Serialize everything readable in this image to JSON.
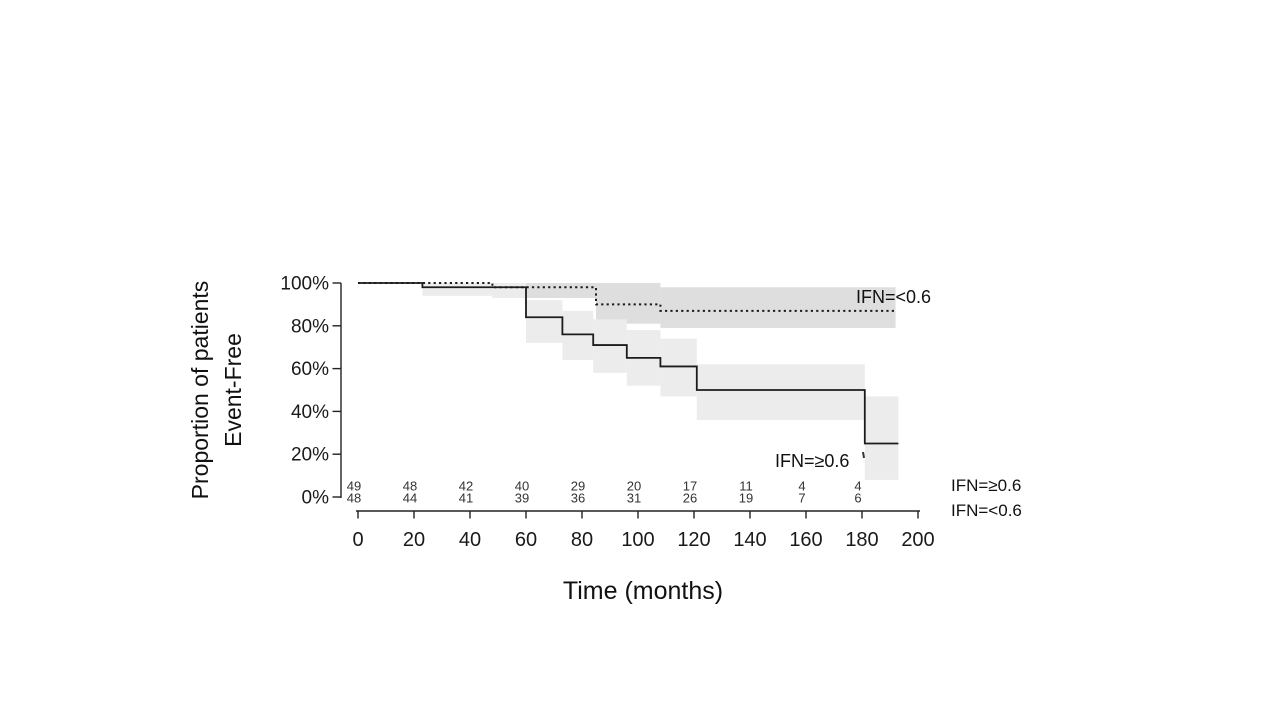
{
  "chart_data": {
    "type": "line",
    "subtype": "kaplan-meier-step",
    "title": "",
    "xlabel": "Time (months)",
    "ylabel_line1": "Proportion of patients",
    "ylabel_line2": "Event-Free",
    "xlim": [
      0,
      200
    ],
    "ylim": [
      0,
      100
    ],
    "grid": false,
    "x_ticks": [
      0,
      20,
      40,
      60,
      80,
      100,
      120,
      140,
      160,
      180,
      200
    ],
    "y_ticks": [
      {
        "value": 0,
        "label": "0%"
      },
      {
        "value": 20,
        "label": "20%"
      },
      {
        "value": 40,
        "label": "40%"
      },
      {
        "value": 60,
        "label": "60%"
      },
      {
        "value": 80,
        "label": "80%"
      },
      {
        "value": 100,
        "label": "100%"
      }
    ],
    "series": [
      {
        "key": "ifn-lt-0.6",
        "name": "IFN=<0.6",
        "label": "IFN=<0.6",
        "style": "dotted",
        "line_color": "#1c1c1c",
        "band_color": "#dedede",
        "points": [
          [
            0,
            100
          ],
          [
            48,
            98
          ],
          [
            85,
            90
          ],
          [
            108,
            87
          ]
        ],
        "end_time": 192,
        "ci_segments": [
          [
            48,
            85,
            100,
            93
          ],
          [
            85,
            108,
            100,
            81
          ],
          [
            108,
            192,
            98,
            79
          ]
        ]
      },
      {
        "key": "ifn-ge-0.6",
        "name": "IFN=≥0.6",
        "label": "IFN=≥0.6",
        "style": "solid",
        "line_color": "#1c1c1c",
        "band_color": "#ececec",
        "points": [
          [
            0,
            100
          ],
          [
            23,
            98
          ],
          [
            60,
            84
          ],
          [
            73,
            76
          ],
          [
            84,
            71
          ],
          [
            96,
            65
          ],
          [
            108,
            61
          ],
          [
            121,
            50
          ],
          [
            181,
            25
          ]
        ],
        "end_time": 193,
        "ci_segments": [
          [
            23,
            48,
            100,
            94
          ],
          [
            48,
            60,
            100,
            93
          ],
          [
            60,
            73,
            92,
            72
          ],
          [
            73,
            84,
            87,
            64
          ],
          [
            84,
            96,
            83,
            58
          ],
          [
            96,
            108,
            78,
            52
          ],
          [
            108,
            121,
            74,
            47
          ],
          [
            121,
            181,
            62,
            36
          ],
          [
            181,
            193,
            47,
            8
          ]
        ]
      }
    ],
    "risk_table": {
      "times": [
        0,
        20,
        40,
        60,
        80,
        100,
        120,
        140,
        160,
        180
      ],
      "rows": [
        {
          "label": "IFN=≥0.6",
          "values": [
            49,
            48,
            42,
            40,
            29,
            20,
            17,
            11,
            4,
            4
          ]
        },
        {
          "label": "IFN=<0.6",
          "values": [
            48,
            44,
            41,
            39,
            36,
            31,
            26,
            19,
            7,
            6
          ]
        }
      ]
    },
    "colors": {
      "axis": "#222222",
      "tick_text": "#1a1a1a",
      "risk_text": "#333333",
      "background": "#ffffff"
    }
  }
}
